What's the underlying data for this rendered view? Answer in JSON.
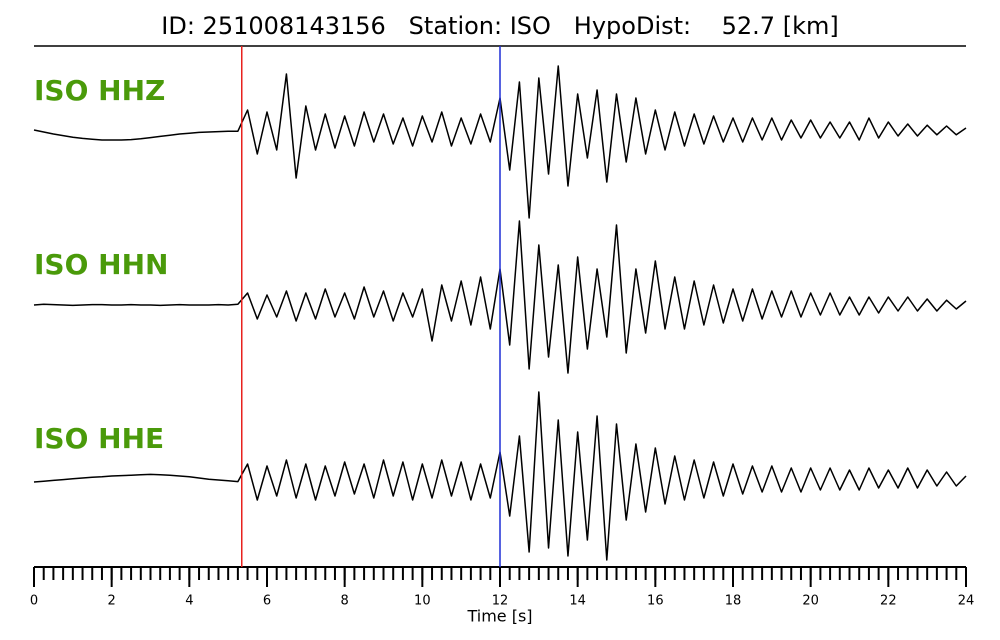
{
  "chart_data": {
    "type": "waveform",
    "title": "ID: 251008143156   Station: ISO   HypoDist:    52.7 [km]",
    "xlabel": "Time [s]",
    "xlim": [
      0,
      24
    ],
    "xticks": [
      0,
      2,
      4,
      6,
      8,
      10,
      12,
      14,
      16,
      18,
      20,
      22,
      24
    ],
    "xminorticks": [
      0,
      0.25,
      0.5,
      0.75,
      1,
      1.25,
      1.5,
      1.75,
      2,
      2.25,
      2.5,
      2.75,
      3,
      3.25,
      3.5,
      3.75,
      4,
      4.25,
      4.5,
      4.75,
      5,
      5.25,
      5.5,
      5.75,
      6,
      6.25,
      6.5,
      6.75,
      7,
      7.25,
      7.5,
      7.75,
      8,
      8.25,
      8.5,
      8.75,
      9,
      9.25,
      9.5,
      9.75,
      10,
      10.25,
      10.5,
      10.75,
      11,
      11.25,
      11.5,
      11.75,
      12,
      12.25,
      12.5,
      12.75,
      13,
      13.25,
      13.5,
      13.75,
      14,
      14.25,
      14.5,
      14.75,
      15,
      15.25,
      15.5,
      15.75,
      16,
      16.25,
      16.5,
      16.75,
      17,
      17.25,
      17.5,
      17.75,
      18,
      18.25,
      18.5,
      18.75,
      19,
      19.25,
      19.5,
      19.75,
      20,
      20.25,
      20.5,
      20.75,
      21,
      21.25,
      21.5,
      21.75,
      22,
      22.25,
      22.5,
      22.75,
      23,
      23.25,
      23.5,
      23.75,
      24
    ],
    "picks": [
      {
        "time": 5.35,
        "color": "#e8201c"
      },
      {
        "time": 12.0,
        "color": "#1f2fd6"
      }
    ],
    "x": [
      0,
      0.25,
      0.5,
      0.75,
      1,
      1.25,
      1.5,
      1.75,
      2,
      2.25,
      2.5,
      2.75,
      3,
      3.25,
      3.5,
      3.75,
      4,
      4.25,
      4.5,
      4.75,
      5,
      5.25,
      5.5,
      5.75,
      6,
      6.25,
      6.5,
      6.75,
      7,
      7.25,
      7.5,
      7.75,
      8,
      8.25,
      8.5,
      8.75,
      9,
      9.25,
      9.5,
      9.75,
      10,
      10.25,
      10.5,
      10.75,
      11,
      11.25,
      11.5,
      11.75,
      12,
      12.25,
      12.5,
      12.75,
      13,
      13.25,
      13.5,
      13.75,
      14,
      14.25,
      14.5,
      14.75,
      15,
      15.25,
      15.5,
      15.75,
      16,
      16.25,
      16.5,
      16.75,
      17,
      17.25,
      17.5,
      17.75,
      18,
      18.25,
      18.5,
      18.75,
      19,
      19.25,
      19.5,
      19.75,
      20,
      20.25,
      20.5,
      20.75,
      21,
      21.25,
      21.5,
      21.75,
      22,
      22.25,
      22.5,
      22.75,
      23,
      23.25,
      23.5,
      23.75,
      24
    ],
    "label_color": "#4a9a0a",
    "series": [
      {
        "name": "ISO HHZ",
        "color": "#000000",
        "values": [
          0,
          -0.05,
          -0.1,
          -0.14,
          -0.18,
          -0.21,
          -0.23,
          -0.25,
          -0.25,
          -0.25,
          -0.24,
          -0.22,
          -0.19,
          -0.16,
          -0.13,
          -0.1,
          -0.08,
          -0.06,
          -0.05,
          -0.04,
          -0.03,
          -0.03,
          0.5,
          -0.6,
          0.45,
          -0.5,
          1.4,
          -1.2,
          0.6,
          -0.5,
          0.4,
          -0.45,
          0.35,
          -0.4,
          0.45,
          -0.3,
          0.4,
          -0.35,
          0.3,
          -0.4,
          0.35,
          -0.3,
          0.45,
          -0.4,
          0.3,
          -0.35,
          0.4,
          -0.3,
          0.8,
          -1.0,
          1.2,
          -2.2,
          1.3,
          -1.1,
          1.6,
          -1.4,
          0.9,
          -0.7,
          1.0,
          -1.3,
          0.9,
          -0.8,
          0.8,
          -0.6,
          0.5,
          -0.5,
          0.45,
          -0.4,
          0.4,
          -0.35,
          0.35,
          -0.3,
          0.3,
          -0.3,
          0.3,
          -0.25,
          0.3,
          -0.25,
          0.25,
          -0.2,
          0.25,
          -0.2,
          0.2,
          -0.2,
          0.2,
          -0.25,
          0.3,
          -0.2,
          0.2,
          -0.15,
          0.15,
          -0.15,
          0.12,
          -0.12,
          0.1,
          -0.12,
          0.05
        ]
      },
      {
        "name": "ISO HHN",
        "color": "#000000",
        "values": [
          0,
          0.02,
          0.01,
          0,
          -0.01,
          0,
          0.01,
          0.01,
          0,
          0,
          0.01,
          0,
          0,
          -0.01,
          0,
          0.01,
          0,
          0,
          0,
          0.01,
          0,
          0.02,
          0.3,
          -0.35,
          0.25,
          -0.3,
          0.35,
          -0.4,
          0.3,
          -0.35,
          0.4,
          -0.3,
          0.3,
          -0.35,
          0.45,
          -0.3,
          0.35,
          -0.4,
          0.3,
          -0.3,
          0.4,
          -0.9,
          0.5,
          -0.4,
          0.6,
          -0.5,
          0.7,
          -0.6,
          0.9,
          -1.0,
          2.1,
          -1.6,
          1.5,
          -1.3,
          1.0,
          -1.7,
          1.2,
          -1.1,
          0.9,
          -0.8,
          2.0,
          -1.2,
          0.9,
          -0.7,
          1.1,
          -0.6,
          0.7,
          -0.6,
          0.6,
          -0.5,
          0.5,
          -0.45,
          0.4,
          -0.4,
          0.4,
          -0.35,
          0.35,
          -0.3,
          0.35,
          -0.3,
          0.3,
          -0.25,
          0.3,
          -0.25,
          0.2,
          -0.25,
          0.2,
          -0.2,
          0.2,
          -0.15,
          0.2,
          -0.15,
          0.15,
          -0.15,
          0.12,
          -0.1,
          0.1
        ]
      },
      {
        "name": "ISO HHE",
        "color": "#000000",
        "values": [
          -0.05,
          -0.03,
          -0.01,
          0.01,
          0.03,
          0.05,
          0.07,
          0.08,
          0.1,
          0.11,
          0.12,
          0.13,
          0.14,
          0.13,
          0.12,
          0.1,
          0.08,
          0.05,
          0.02,
          0,
          -0.02,
          -0.04,
          0.4,
          -0.5,
          0.35,
          -0.4,
          0.5,
          -0.45,
          0.4,
          -0.5,
          0.35,
          -0.4,
          0.45,
          -0.35,
          0.4,
          -0.45,
          0.5,
          -0.4,
          0.45,
          -0.5,
          0.4,
          -0.45,
          0.5,
          -0.4,
          0.45,
          -0.5,
          0.4,
          -0.45,
          0.7,
          -0.9,
          1.1,
          -1.8,
          2.2,
          -1.7,
          1.5,
          -1.9,
          1.2,
          -1.5,
          1.6,
          -2.0,
          1.4,
          -1.0,
          0.9,
          -0.8,
          0.8,
          -0.6,
          0.6,
          -0.5,
          0.5,
          -0.45,
          0.45,
          -0.4,
          0.4,
          -0.35,
          0.35,
          -0.3,
          0.35,
          -0.3,
          0.3,
          -0.3,
          0.3,
          -0.25,
          0.3,
          -0.25,
          0.25,
          -0.25,
          0.3,
          -0.2,
          0.25,
          -0.2,
          0.3,
          -0.2,
          0.25,
          -0.15,
          0.2,
          -0.15,
          0.1
        ]
      }
    ]
  }
}
